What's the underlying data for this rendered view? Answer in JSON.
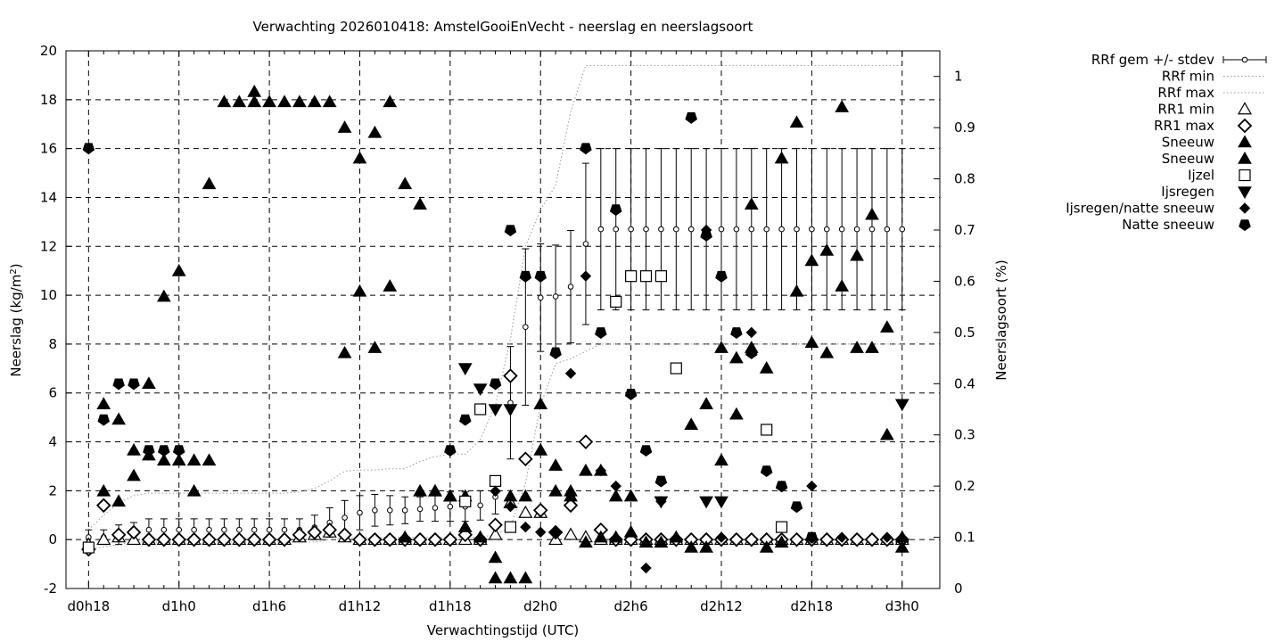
{
  "chart_data": {
    "type": "scatter",
    "title": "Verwachting 2026010418: AmstelGooiEnVecht - neerslag en neerslagsoort",
    "xlabel": "Verwachtingstijd (UTC)",
    "ylabel": "Neerslag (kg/m²)",
    "ylabel_parts": [
      "Neerslag (kg/m",
      "2",
      ")"
    ],
    "y2label": "Neerslagsoort (%)",
    "x_unit": "hours since d0h18",
    "xlim": [
      -1.5,
      56.5
    ],
    "ylim": [
      -2,
      20
    ],
    "y2lim": [
      0,
      1.05
    ],
    "grid": true,
    "legend_position": "outside-right",
    "x_ticks": [
      {
        "value": 0,
        "label": "d0h18"
      },
      {
        "value": 6,
        "label": "d1h0"
      },
      {
        "value": 12,
        "label": "d1h6"
      },
      {
        "value": 18,
        "label": "d1h12"
      },
      {
        "value": 24,
        "label": "d1h18"
      },
      {
        "value": 30,
        "label": "d2h0"
      },
      {
        "value": 36,
        "label": "d2h6"
      },
      {
        "value": 42,
        "label": "d2h12"
      },
      {
        "value": 48,
        "label": "d2h18"
      },
      {
        "value": 54,
        "label": "d3h0"
      }
    ],
    "y_ticks": [
      -2,
      0,
      2,
      4,
      6,
      8,
      10,
      12,
      14,
      16,
      18,
      20
    ],
    "y2_ticks": [
      {
        "value": 0,
        "label": "0"
      },
      {
        "value": 0.1,
        "label": "0.1"
      },
      {
        "value": 0.2,
        "label": "0.2"
      },
      {
        "value": 0.3,
        "label": "0.3"
      },
      {
        "value": 0.4,
        "label": "0.4"
      },
      {
        "value": 0.5,
        "label": "0.5"
      },
      {
        "value": 0.6,
        "label": "0.6"
      },
      {
        "value": 0.7,
        "label": "0.7"
      },
      {
        "value": 0.8,
        "label": "0.8"
      },
      {
        "value": 0.9,
        "label": "0.9"
      },
      {
        "value": 1,
        "label": "1"
      }
    ],
    "legend": [
      {
        "label": "RRf gem +/- stdev",
        "symbol": "errorbar"
      },
      {
        "label": "RRf min",
        "symbol": "dotted"
      },
      {
        "label": "RRf max",
        "symbol": "dotted"
      },
      {
        "label": "RR1 min",
        "symbol": "triangle-open"
      },
      {
        "label": "RR1 max",
        "symbol": "diamond-open"
      },
      {
        "label": "Sneeuw",
        "symbol": "triangle-filled"
      },
      {
        "label": "Sneeuw",
        "symbol": "triangle-filled"
      },
      {
        "label": "Ijzel",
        "symbol": "square-open"
      },
      {
        "label": "Ijsregen",
        "symbol": "triangle-down-filled"
      },
      {
        "label": "Ijsregen/natte sneeuw",
        "symbol": "diamond-filled"
      },
      {
        "label": "Natte sneeuw",
        "symbol": "pentagon-filled"
      }
    ],
    "series": [
      {
        "name": "RRf gem +/- stdev",
        "axis": "y",
        "x": [
          0,
          1,
          2,
          3,
          4,
          5,
          6,
          7,
          8,
          9,
          10,
          11,
          12,
          13,
          14,
          15,
          16,
          17,
          18,
          19,
          20,
          21,
          22,
          23,
          24,
          25,
          26,
          27,
          28,
          29,
          30,
          31,
          32,
          33,
          34,
          35,
          36,
          37,
          38,
          39,
          40,
          41,
          42,
          43,
          44,
          45,
          46,
          47,
          48,
          49,
          50,
          51,
          52,
          53,
          54
        ],
        "y": [
          0.1,
          0.1,
          0.2,
          0.3,
          0.4,
          0.4,
          0.4,
          0.4,
          0.4,
          0.4,
          0.4,
          0.4,
          0.4,
          0.4,
          0.4,
          0.5,
          0.7,
          0.9,
          1.1,
          1.2,
          1.2,
          1.2,
          1.25,
          1.3,
          1.35,
          1.35,
          1.4,
          1.75,
          5.6,
          8.7,
          9.9,
          9.95,
          10.35,
          12.1,
          12.7,
          12.7,
          12.7,
          12.7,
          12.7,
          12.7,
          12.7,
          12.7,
          12.7,
          12.7,
          12.7,
          12.7,
          12.7,
          12.7,
          12.7,
          12.7,
          12.7,
          12.7,
          12.7,
          12.7,
          12.7
        ],
        "err": [
          0.3,
          0.3,
          0.4,
          0.4,
          0.45,
          0.45,
          0.45,
          0.45,
          0.45,
          0.45,
          0.45,
          0.45,
          0.45,
          0.45,
          0.45,
          0.5,
          0.6,
          0.7,
          0.7,
          0.65,
          0.6,
          0.55,
          0.5,
          0.55,
          0.6,
          0.6,
          0.6,
          0.7,
          2.3,
          3.2,
          2.2,
          2.1,
          2.3,
          3.3,
          3.3,
          3.3,
          3.3,
          3.3,
          3.3,
          3.3,
          3.3,
          3.3,
          3.3,
          3.3,
          3.3,
          3.3,
          3.3,
          3.3,
          3.3,
          3.3,
          3.3,
          3.3,
          3.3,
          3.3,
          3.3
        ]
      },
      {
        "name": "RRf min",
        "axis": "y",
        "x": [
          0,
          1,
          2,
          3,
          4,
          5,
          6,
          7,
          8,
          9,
          10,
          11,
          12,
          13,
          14,
          15,
          16,
          17,
          18,
          19,
          20,
          21,
          22,
          23,
          24,
          25,
          26,
          27,
          28,
          29,
          30,
          31,
          32,
          33,
          34,
          35,
          36,
          37,
          38,
          39,
          40,
          41,
          42,
          43,
          44,
          45,
          46,
          47,
          48,
          49,
          50,
          51,
          52,
          53,
          54
        ],
        "y": [
          -0.4,
          -0.3,
          -0.2,
          -0.1,
          -0.1,
          -0.1,
          -0.1,
          -0.1,
          -0.1,
          -0.1,
          -0.1,
          -0.1,
          -0.1,
          -0.1,
          -0.1,
          -0.1,
          0,
          0.05,
          0.1,
          0.1,
          0.1,
          0.1,
          0.1,
          0.1,
          0.1,
          0.1,
          0.1,
          0.2,
          0.5,
          2.3,
          5.5,
          7.2,
          7.4,
          7.7,
          8.0,
          8.0,
          8.0,
          8.0,
          8.0,
          8.0,
          8.0,
          8.0,
          8.0,
          8.0,
          8.0,
          8.0,
          8.0,
          8.0,
          8.0,
          8.0,
          8.0,
          8.0,
          8.0,
          8.0,
          8.0
        ]
      },
      {
        "name": "RRf max",
        "axis": "y",
        "x": [
          0,
          1,
          2,
          3,
          4,
          5,
          6,
          7,
          8,
          9,
          10,
          11,
          12,
          13,
          14,
          15,
          16,
          17,
          18,
          19,
          20,
          21,
          22,
          23,
          24,
          25,
          26,
          27,
          28,
          29,
          30,
          31,
          32,
          33,
          34,
          35,
          36,
          37,
          38,
          39,
          40,
          41,
          42,
          43,
          44,
          45,
          46,
          47,
          48,
          49,
          50,
          51,
          52,
          53,
          54
        ],
        "y": [
          0.4,
          1.0,
          1.5,
          1.8,
          1.9,
          1.9,
          1.9,
          1.9,
          1.9,
          1.9,
          1.9,
          1.9,
          1.9,
          1.9,
          1.95,
          2.1,
          2.4,
          2.8,
          2.85,
          2.85,
          2.9,
          2.9,
          3.2,
          3.4,
          3.5,
          3.5,
          4.1,
          5.5,
          8.2,
          12.0,
          13.5,
          14.5,
          17.5,
          19.4,
          19.4,
          19.4,
          19.4,
          19.4,
          19.4,
          19.4,
          19.4,
          19.4,
          19.4,
          19.4,
          19.4,
          19.4,
          19.4,
          19.4,
          19.4,
          19.4,
          19.4,
          19.4,
          19.4,
          19.4,
          19.4
        ]
      },
      {
        "name": "RR1 min",
        "axis": "y",
        "x": [
          0,
          1,
          2,
          3,
          4,
          5,
          6,
          7,
          8,
          9,
          10,
          11,
          12,
          13,
          14,
          15,
          16,
          17,
          18,
          19,
          20,
          21,
          22,
          23,
          24,
          25,
          26,
          27,
          28,
          29,
          30,
          31,
          32,
          33,
          34,
          35,
          36,
          37,
          38,
          39,
          40,
          41,
          42,
          43,
          44,
          45,
          46,
          47,
          48,
          49,
          50,
          51,
          52,
          53,
          54
        ],
        "y": [
          -0.2,
          0,
          0.1,
          0,
          0,
          0,
          0,
          0,
          0,
          0,
          0,
          0,
          0,
          0,
          0.1,
          0.2,
          0.3,
          0.1,
          0,
          0,
          0,
          0,
          0,
          0,
          0,
          0,
          0,
          0.2,
          1.5,
          1.1,
          1.1,
          0,
          0.2,
          0.1,
          0,
          0,
          0,
          0,
          0,
          0,
          0,
          0,
          0,
          0,
          0,
          0,
          0,
          0,
          0,
          0,
          0,
          0,
          0,
          0,
          0
        ]
      },
      {
        "name": "RR1 max",
        "axis": "y",
        "x": [
          0,
          1,
          2,
          3,
          4,
          5,
          6,
          7,
          8,
          9,
          10,
          11,
          12,
          13,
          14,
          15,
          16,
          17,
          18,
          19,
          20,
          21,
          22,
          23,
          24,
          25,
          26,
          27,
          28,
          29,
          30,
          31,
          32,
          33,
          34,
          35,
          36,
          37,
          38,
          39,
          40,
          41,
          42,
          43,
          44,
          45,
          46,
          47,
          48,
          49,
          50,
          51,
          52,
          53,
          54
        ],
        "y": [
          -0.4,
          1.4,
          0.2,
          0.3,
          0,
          0,
          0,
          0,
          0,
          0,
          0,
          0,
          0,
          0,
          0.2,
          0.3,
          0.4,
          0.2,
          0,
          0,
          0,
          0,
          0,
          0,
          0,
          0.2,
          0,
          0.6,
          6.7,
          3.3,
          1.2,
          0.3,
          1.4,
          4.0,
          0.4,
          0,
          0,
          0,
          0,
          0,
          0,
          0,
          0,
          0,
          0,
          0,
          0,
          0,
          0,
          0,
          0,
          0,
          0,
          0,
          0
        ]
      },
      {
        "name": "Sneeuw",
        "axis": "y2",
        "x": [
          1,
          2,
          3,
          4,
          5,
          6,
          7,
          8,
          9,
          10,
          11,
          12,
          13,
          14,
          15,
          16,
          17,
          18,
          19,
          20,
          21,
          22,
          23,
          24,
          25,
          27,
          28,
          29,
          30,
          31,
          32,
          33,
          34,
          35,
          36,
          40,
          41,
          42,
          43,
          44,
          45,
          46,
          47,
          48,
          49,
          50,
          51,
          52,
          53,
          54
        ],
        "y": [
          0.19,
          0.17,
          0.22,
          0.4,
          0.57,
          0.62,
          0.19,
          0.79,
          0.95,
          0.95,
          0.95,
          0.95,
          0.95,
          0.95,
          0.95,
          0.95,
          0.9,
          0.84,
          0.89,
          0.95,
          0.79,
          0.75,
          0.19,
          0.18,
          0.18,
          0.02,
          0.02,
          0.02,
          0.36,
          0.19,
          0.18,
          0.23,
          0.23,
          0.18,
          0.18,
          0.08,
          0.08,
          0.25,
          0.34,
          0.47,
          0.43,
          0.84,
          0.91,
          0.48,
          0.46,
          0.94,
          0.65,
          0.47,
          0.3,
          0.08
        ]
      },
      {
        "name": "Sneeuw",
        "axis": "y2",
        "x": [
          1,
          2,
          3,
          4,
          5,
          6,
          7,
          8,
          11,
          17,
          18,
          19,
          20,
          21,
          22,
          23,
          24,
          25,
          26,
          27,
          28,
          29,
          30,
          31,
          32,
          33,
          34,
          35,
          36,
          37,
          38,
          39,
          40,
          41,
          42,
          43,
          44,
          45,
          46,
          47,
          48,
          49,
          50,
          51,
          52,
          53,
          54
        ],
        "y": [
          0.36,
          0.33,
          0.27,
          0.26,
          0.25,
          0.25,
          0.25,
          0.25,
          0.97,
          0.46,
          0.58,
          0.47,
          0.59,
          0.1,
          0.19,
          0.19,
          0.18,
          0.12,
          0.1,
          0.06,
          0.18,
          0.18,
          0.27,
          0.24,
          0.19,
          0.09,
          0.1,
          0.1,
          0.11,
          0.09,
          0.09,
          0.1,
          0.32,
          0.36,
          0.47,
          0.45,
          0.75,
          0.08,
          0.09,
          0.58,
          0.64,
          0.66,
          0.59,
          0.47,
          0.73,
          0.51,
          0.1
        ]
      },
      {
        "name": "Ijzel",
        "axis": "y2",
        "x": [
          0,
          25,
          26,
          27,
          28,
          35,
          36,
          37,
          38,
          39,
          45,
          46
        ],
        "y": [
          0.08,
          0.17,
          0.35,
          0.21,
          0.12,
          0.56,
          0.61,
          0.61,
          0.61,
          0.43,
          0.31,
          0.12
        ],
        "y_axis_units": "percent-fraction",
        "note_values_y": [
          0.08,
          0.17,
          0.35,
          0.21,
          0.12,
          0.56,
          0.61,
          0.61,
          0.61,
          0.43,
          0.31,
          0.12
        ]
      },
      {
        "name": "Ijsregen",
        "axis": "y2",
        "x": [
          25,
          26,
          27,
          28,
          38,
          41,
          42,
          54
        ],
        "y": [
          0.43,
          0.39,
          0.35,
          0.35,
          0.17,
          0.17,
          0.17,
          0.36
        ]
      },
      {
        "name": "Ijsregen/natte sneeuw",
        "axis": "y2",
        "x": [
          27,
          28,
          29,
          30,
          31,
          32,
          33,
          34,
          35,
          37,
          38,
          41,
          42,
          44,
          45,
          46,
          48,
          50,
          53
        ],
        "y": [
          0.19,
          0.16,
          0.12,
          0.11,
          0.11,
          0.42,
          0.61,
          0.23,
          0.2,
          0.04,
          0.17,
          0.7,
          0.1,
          0.5,
          0.23,
          0.2,
          0.2,
          0.1,
          0.1
        ]
      },
      {
        "name": "Natte sneeuw",
        "axis": "y2",
        "x": [
          0,
          1,
          2,
          3,
          4,
          5,
          6,
          24,
          25,
          27,
          28,
          29,
          30,
          31,
          33,
          34,
          35,
          36,
          37,
          38,
          40,
          41,
          42,
          43,
          44,
          45,
          46,
          47,
          48
        ],
        "y": [
          0.86,
          0.33,
          0.4,
          0.4,
          0.27,
          0.27,
          0.27,
          0.27,
          0.33,
          0.4,
          0.7,
          0.61,
          0.61,
          0.46,
          0.86,
          0.5,
          0.74,
          0.38,
          0.27,
          0.21,
          0.92,
          0.69,
          0.61,
          0.5,
          0.46,
          0.23,
          0.2,
          0.16,
          0.1
        ]
      }
    ]
  }
}
